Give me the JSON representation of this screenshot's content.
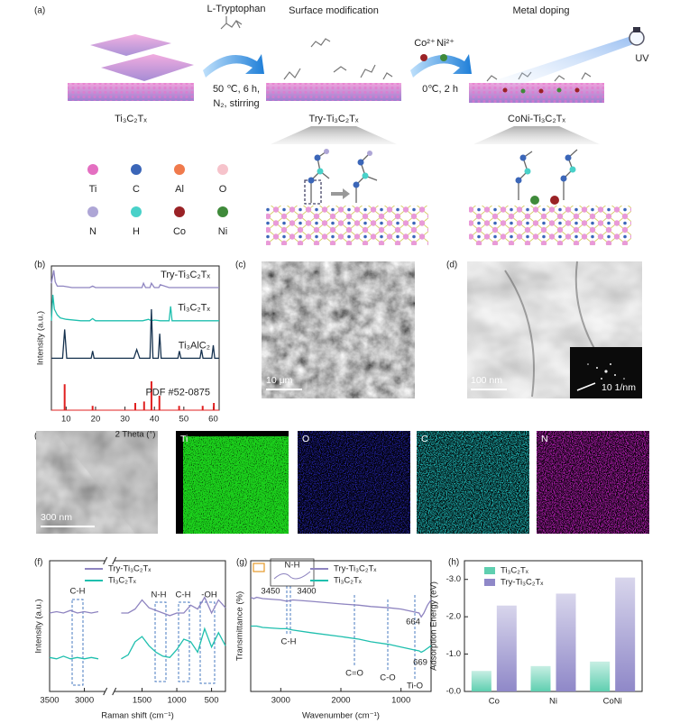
{
  "figure": {
    "a": {
      "label": "(a)",
      "step1": [
        "L-Tryptophan",
        "50 ℃, 6 h,",
        "N₂, stirring"
      ],
      "step2": [
        "Co²⁺",
        "Ni²⁺",
        "0℃,  2 h"
      ],
      "headings": [
        "Surface modification",
        "Metal doping"
      ],
      "uv": "UV",
      "materials": [
        "Ti₃C₂Tₓ",
        "Try-Ti₃C₂Tₓ",
        "CoNi-Ti₃C₂Tₓ"
      ],
      "legend": [
        {
          "name": "Ti",
          "color": "#e46fc1"
        },
        {
          "name": "C",
          "color": "#3b66b8"
        },
        {
          "name": "Al",
          "color": "#f07a4c"
        },
        {
          "name": "O",
          "color": "#f6c3cb"
        },
        {
          "name": "N",
          "color": "#aea6d6"
        },
        {
          "name": "H",
          "color": "#49d1c9"
        },
        {
          "name": "Co",
          "color": "#9a2226"
        },
        {
          "name": "Ni",
          "color": "#3f8a3a"
        }
      ]
    },
    "c": {
      "label": "(c)",
      "scale": "10 μm"
    },
    "d": {
      "label": "(d)",
      "scale": "100 nm",
      "inset_scale": "10 1/nm"
    },
    "e": {
      "label": "(e)",
      "scale": "300 nm",
      "maps": [
        {
          "name": "Ti",
          "color": "#1bd21b"
        },
        {
          "name": "O",
          "color": "#2a2ac8"
        },
        {
          "name": "C",
          "color": "#22c4c4"
        },
        {
          "name": "N",
          "color": "#c020c0"
        }
      ]
    }
  },
  "chart_data": [
    {
      "type": "line",
      "label": "(b)",
      "x_label": "2 Theta (°)",
      "y_label": "Intensity (a.u.)",
      "xlim": [
        5,
        62
      ],
      "xticks": [
        10,
        20,
        30,
        40,
        50,
        60
      ],
      "ylim": [
        0,
        1
      ],
      "series": [
        {
          "name": "Try-Ti₃C₂Tₓ",
          "color": "#8e84c0",
          "x": [
            5,
            5.8,
            6.3,
            7,
            9,
            12,
            15,
            18,
            19,
            20,
            25,
            30,
            33,
            35.8,
            36.3,
            37,
            38.5,
            39,
            40,
            41.5,
            42,
            45,
            50,
            55,
            60,
            62
          ],
          "values": [
            0.88,
            0.97,
            0.89,
            0.86,
            0.86,
            0.85,
            0.85,
            0.85,
            0.86,
            0.85,
            0.85,
            0.85,
            0.85,
            0.85,
            0.88,
            0.85,
            0.85,
            0.88,
            0.85,
            0.85,
            0.87,
            0.85,
            0.85,
            0.85,
            0.85,
            0.85
          ]
        },
        {
          "name": "Ti₃C₂Tₓ",
          "color": "#1fbfae",
          "x": [
            5,
            5.5,
            6,
            7,
            8,
            10,
            15,
            18,
            19,
            20,
            30,
            36,
            38,
            39,
            40,
            42,
            45,
            45.5,
            46,
            50,
            60,
            62
          ],
          "values": [
            0.62,
            0.8,
            0.7,
            0.66,
            0.64,
            0.63,
            0.62,
            0.62,
            0.635,
            0.62,
            0.62,
            0.62,
            0.63,
            0.62,
            0.625,
            0.62,
            0.62,
            0.72,
            0.62,
            0.62,
            0.62,
            0.62
          ]
        },
        {
          "name": "Ti₃AlC₂",
          "color": "#16324f",
          "x": [
            5,
            8.8,
            9.5,
            10.2,
            18.5,
            19,
            19.5,
            33,
            34,
            35,
            38.5,
            39,
            39.5,
            41.3,
            41.8,
            42.3,
            48,
            48.5,
            49,
            55.5,
            56,
            56.5,
            59.5,
            60,
            60.5,
            62
          ],
          "values": [
            0.36,
            0.36,
            0.56,
            0.36,
            0.36,
            0.41,
            0.36,
            0.36,
            0.42,
            0.36,
            0.36,
            0.7,
            0.36,
            0.36,
            0.53,
            0.36,
            0.36,
            0.41,
            0.36,
            0.36,
            0.42,
            0.36,
            0.36,
            0.45,
            0.36,
            0.36
          ]
        }
      ],
      "reference": {
        "name": "PDF #52-0875",
        "color": "#e02020",
        "x": [
          9.5,
          19,
          33.5,
          36.5,
          39,
          41.7,
          48.4,
          56.4,
          60.2
        ],
        "values": [
          0.18,
          0.03,
          0.05,
          0.06,
          0.2,
          0.1,
          0.03,
          0.03,
          0.05
        ]
      }
    },
    {
      "type": "line",
      "label": "(f)",
      "x_label": "Raman shift (cm⁻¹)",
      "y_label": "Intensity (a.u.)",
      "xlim": [
        3500,
        300
      ],
      "axis_break": [
        2700,
        1900
      ],
      "xticks": [
        3500,
        3000,
        1500,
        1000,
        500
      ],
      "ylim": [
        0,
        1
      ],
      "annotations": [
        "C-H",
        "N-H",
        "C-H",
        "-OH"
      ],
      "series": [
        {
          "name": "Try-Ti₃C₂Tₓ",
          "color": "#8e84c0",
          "x": [
            3500,
            3400,
            3300,
            3200,
            3100,
            3000,
            2900,
            2800,
            2300,
            1800,
            1700,
            1600,
            1500,
            1400,
            1300,
            1200,
            1100,
            1000,
            900,
            800,
            700,
            600,
            500,
            400,
            300
          ],
          "values": [
            0.6,
            0.61,
            0.6,
            0.62,
            0.6,
            0.61,
            0.6,
            0.61,
            null,
            0.6,
            0.6,
            0.63,
            0.7,
            0.64,
            0.62,
            0.6,
            0.58,
            0.6,
            0.6,
            0.66,
            0.63,
            0.72,
            0.6,
            0.7,
            0.64
          ]
        },
        {
          "name": "Ti₃C₂Tₓ",
          "color": "#1fbfae",
          "x": [
            3500,
            3400,
            3300,
            3200,
            3100,
            3000,
            2900,
            2800,
            2300,
            1800,
            1700,
            1600,
            1500,
            1400,
            1300,
            1200,
            1100,
            1000,
            900,
            800,
            700,
            600,
            500,
            400,
            300
          ],
          "values": [
            0.26,
            0.25,
            0.27,
            0.25,
            0.26,
            0.25,
            0.26,
            0.25,
            null,
            0.25,
            0.28,
            0.38,
            0.42,
            0.35,
            0.3,
            0.27,
            0.26,
            0.32,
            0.4,
            0.38,
            0.3,
            0.48,
            0.34,
            0.45,
            0.35
          ]
        }
      ]
    },
    {
      "type": "line",
      "label": "(g)",
      "x_label": "Wavenumber (cm⁻¹)",
      "y_label": "Transmittance (%)",
      "xlim": [
        3500,
        500
      ],
      "xticks": [
        3000,
        2000,
        1000
      ],
      "ylim": [
        0,
        1
      ],
      "annotations": [
        "N-H",
        "3450",
        "3400",
        "C-H",
        "C=O",
        "C-O",
        "Ti-O",
        "664",
        "669"
      ],
      "series": [
        {
          "name": "Try-Ti₃C₂Tₓ",
          "color": "#8e84c0",
          "x": [
            3500,
            3450,
            3400,
            3300,
            3000,
            2900,
            2800,
            2500,
            2000,
            1700,
            1500,
            1200,
            1000,
            800,
            700,
            664,
            620,
            560,
            500
          ],
          "values": [
            0.72,
            0.71,
            0.72,
            0.71,
            0.7,
            0.69,
            0.7,
            0.69,
            0.67,
            0.66,
            0.65,
            0.64,
            0.63,
            0.61,
            0.6,
            0.57,
            0.6,
            0.66,
            0.7
          ]
        },
        {
          "name": "Ti₃C₂Tₓ",
          "color": "#1fbfae",
          "x": [
            3500,
            3450,
            3400,
            3300,
            3000,
            2900,
            2800,
            2500,
            2000,
            1700,
            1500,
            1200,
            1000,
            800,
            700,
            664,
            620,
            560,
            500
          ],
          "values": [
            0.5,
            0.5,
            0.5,
            0.49,
            0.48,
            0.48,
            0.47,
            0.45,
            0.42,
            0.4,
            0.38,
            0.36,
            0.34,
            0.32,
            0.31,
            0.3,
            0.31,
            0.33,
            0.35
          ]
        }
      ]
    },
    {
      "type": "bar",
      "label": "(h)",
      "y_label": "Adsorption Energy (eV)",
      "categories": [
        "Co",
        "Ni",
        "CoNi"
      ],
      "ylim": [
        0,
        -3.5
      ],
      "yticks": [
        {
          "value": 0,
          "label": "-0.0"
        },
        {
          "value": -1,
          "label": "-1.0"
        },
        {
          "value": -2,
          "label": "-2.0"
        },
        {
          "value": -3,
          "label": "-3.0"
        }
      ],
      "series": [
        {
          "name": "Ti₃C₂Tₓ",
          "color": "#5fcfb0",
          "values": [
            -0.55,
            -0.68,
            -0.8
          ]
        },
        {
          "name": "Try-Ti₃C₂Tₓ",
          "color": "#8f88c8",
          "values": [
            -2.3,
            -2.62,
            -3.05
          ]
        }
      ]
    }
  ]
}
